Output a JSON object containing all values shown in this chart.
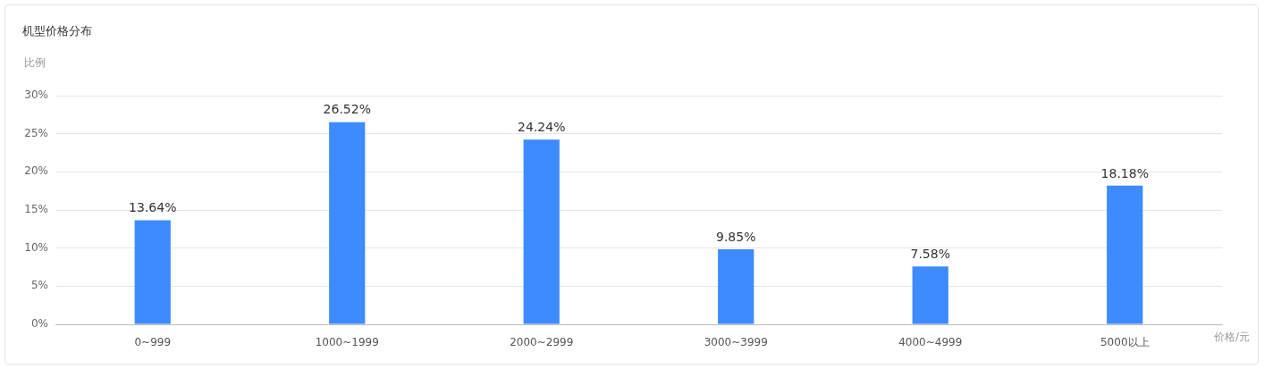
{
  "chart_data": {
    "type": "bar",
    "title": "机型价格分布",
    "ylabel": "比例",
    "xlabel": "价格/元",
    "categories": [
      "0~999",
      "1000~1999",
      "2000~2999",
      "3000~3999",
      "4000~4999",
      "5000以上"
    ],
    "values": [
      13.64,
      26.52,
      24.24,
      9.85,
      7.58,
      18.18
    ],
    "value_labels": [
      "13.64%",
      "26.52%",
      "24.24%",
      "9.85%",
      "7.58%",
      "18.18%"
    ],
    "color": "#3d8bff",
    "ylim": [
      0,
      30
    ],
    "yticks": [
      {
        "value": 0,
        "label": "0%"
      },
      {
        "value": 5,
        "label": "5%"
      },
      {
        "value": 10,
        "label": "10%"
      },
      {
        "value": 15,
        "label": "15%"
      },
      {
        "value": 20,
        "label": "20%"
      },
      {
        "value": 25,
        "label": "25%"
      },
      {
        "value": 30,
        "label": "30%"
      }
    ],
    "grid": "y"
  }
}
